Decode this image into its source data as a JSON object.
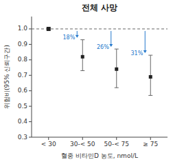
{
  "chart_data": {
    "type": "errorbar",
    "title": "전체 사망",
    "xlabel": "혈중 비타민D 농도, nmol/L",
    "ylabel": "위험비(95% 신뢰구간)",
    "categories": [
      "< 30",
      "30-< 50",
      "50-< 75",
      "≥ 75"
    ],
    "values": [
      1.0,
      0.82,
      0.74,
      0.69
    ],
    "lower": [
      1.0,
      0.73,
      0.62,
      0.57
    ],
    "upper": [
      1.0,
      0.93,
      0.87,
      0.83
    ],
    "color": "#222222",
    "ref_line": 1.0,
    "annotations": [
      null,
      "18%",
      "26%",
      "31%"
    ],
    "ylim": [
      0.3,
      1.08
    ],
    "yticks": [
      0.3,
      0.4,
      0.5,
      0.6,
      0.7,
      0.8,
      0.9,
      {
        "value": 1.0,
        "label": "1.0"
      }
    ],
    "grid": false
  }
}
